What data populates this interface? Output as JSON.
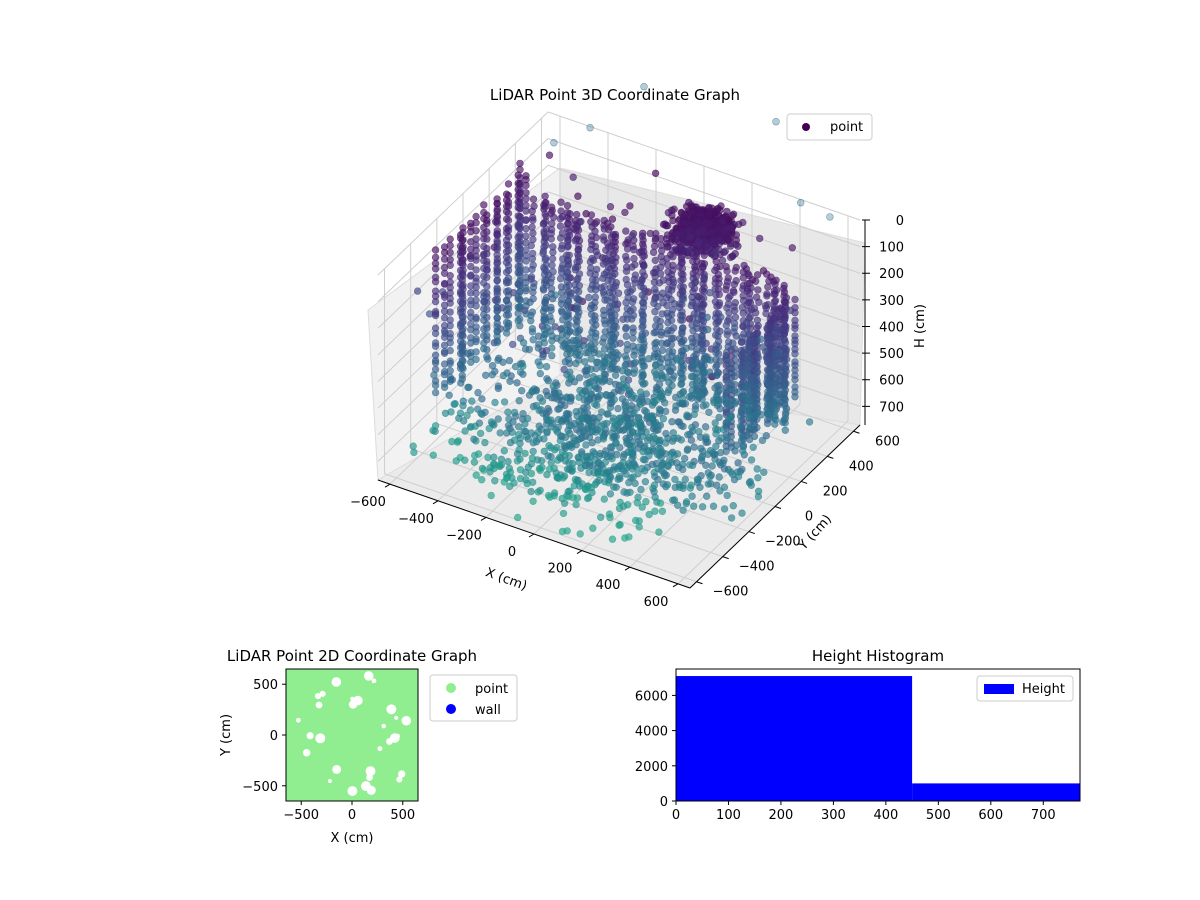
{
  "chart_data": [
    {
      "type": "scatter3d",
      "title": "LiDAR Point 3D Coordinate Graph",
      "xlabel": "X (cm)",
      "ylabel": "Y (cm)",
      "zlabel": "H (cm)",
      "xlim": [
        -650,
        650
      ],
      "ylim": [
        -650,
        650
      ],
      "zlim": [
        0,
        770
      ],
      "x_ticks": [
        -600,
        -400,
        -200,
        0,
        200,
        400,
        600
      ],
      "y_ticks": [
        -600,
        -400,
        -200,
        0,
        200,
        400,
        600
      ],
      "z_ticks": [
        0,
        100,
        200,
        300,
        400,
        500,
        600,
        700
      ],
      "z_inverted": true,
      "colormap": "viridis",
      "grid": true,
      "legend": {
        "placement": "top-right",
        "entries": [
          {
            "label": "point",
            "color": "#440154"
          }
        ]
      },
      "series": [
        {
          "name": "point",
          "marker": "circle"
        }
      ]
    },
    {
      "type": "scatter",
      "title": "LiDAR Point 2D Coordinate Graph",
      "xlabel": "X (cm)",
      "ylabel": "Y (cm)",
      "xlim": [
        -650,
        650
      ],
      "ylim": [
        -650,
        650
      ],
      "x_ticks": [
        -500,
        0,
        500
      ],
      "y_ticks": [
        -500,
        0,
        500
      ],
      "legend": {
        "placement": "outside-right",
        "entries": [
          {
            "label": "point",
            "color": "#90ee90"
          },
          {
            "label": "wall",
            "color": "#0000ff"
          }
        ]
      },
      "series": [
        {
          "name": "point",
          "color": "#90ee90"
        },
        {
          "name": "wall",
          "color": "#0000ff"
        }
      ]
    },
    {
      "type": "histogram",
      "title": "Height Histogram",
      "xlim": [
        0,
        770
      ],
      "ylim": [
        0,
        7500
      ],
      "x_ticks": [
        0,
        100,
        200,
        300,
        400,
        500,
        600,
        700
      ],
      "y_ticks": [
        0,
        2000,
        4000,
        6000
      ],
      "bins": [
        {
          "x0": 0,
          "x1": 450,
          "count": 7100
        },
        {
          "x0": 450,
          "x1": 770,
          "count": 1000
        }
      ],
      "color": "#0000ff",
      "legend": {
        "placement": "top-right",
        "entries": [
          {
            "label": "Height",
            "color": "#0000ff"
          }
        ]
      },
      "series": [
        {
          "name": "Height"
        }
      ]
    }
  ]
}
